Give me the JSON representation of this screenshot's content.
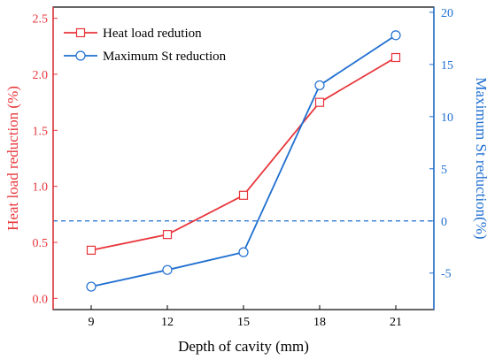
{
  "chart_data": {
    "type": "line",
    "x": [
      9,
      12,
      15,
      18,
      21
    ],
    "xlim": [
      7.5,
      22.5
    ],
    "xticks": [
      "9",
      "12",
      "15",
      "18",
      "21"
    ],
    "xlabel": "Depth of cavity (mm)",
    "y_left": {
      "label": "Heat load reduction (%)",
      "lim": [
        -0.1,
        2.6
      ],
      "ticks": [
        "0.0",
        "0.5",
        "1.0",
        "1.5",
        "2.0",
        "2.5"
      ],
      "tick_values": [
        0.0,
        0.5,
        1.0,
        1.5,
        2.0,
        2.5
      ],
      "color": "#e8363b"
    },
    "y_right": {
      "label": "Maximum St reduction(%)",
      "lim": [
        -8.5,
        20.5
      ],
      "ticks": [
        "-5",
        "0",
        "5",
        "10",
        "15",
        "20"
      ],
      "tick_values": [
        -5,
        0,
        5,
        10,
        15,
        20
      ],
      "color": "#1f6fd0"
    },
    "series": [
      {
        "name": "Heat load redution",
        "axis": "left",
        "marker": "square",
        "color": "#e8363b",
        "values": [
          0.43,
          0.57,
          0.92,
          1.75,
          2.15
        ]
      },
      {
        "name": "Maximum St reduction",
        "axis": "right",
        "marker": "circle",
        "color": "#1f6fd0",
        "values": [
          -6.3,
          -4.7,
          -3.0,
          13.0,
          17.8
        ]
      }
    ],
    "reference_line": {
      "axis": "right",
      "value": 0,
      "style": "dashed",
      "color": "#1f6fd0"
    },
    "legend": "top-left",
    "grid": false
  }
}
